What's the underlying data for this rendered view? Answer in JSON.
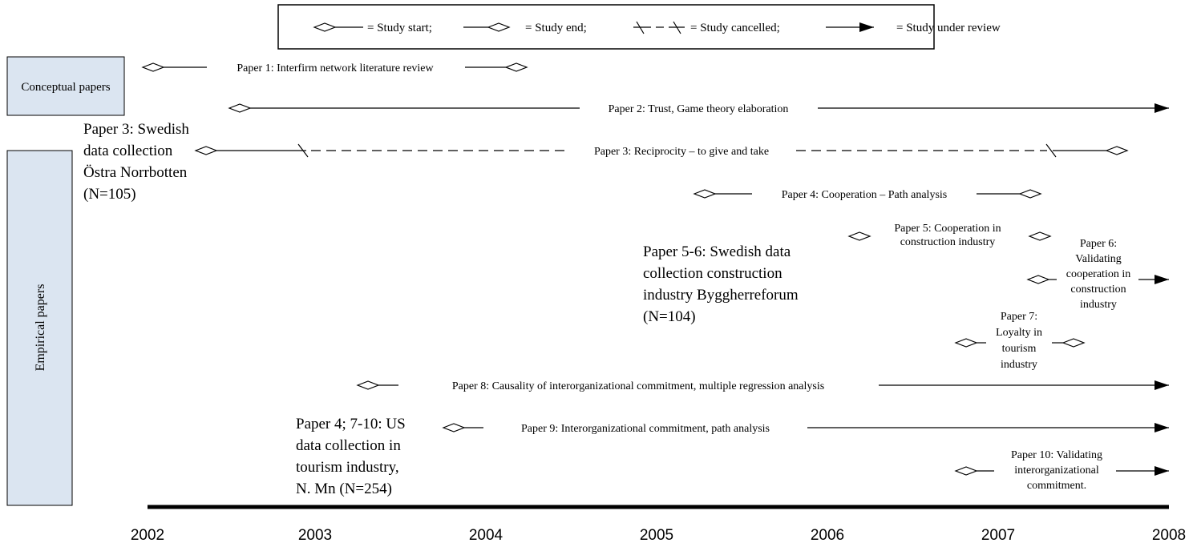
{
  "legend": {
    "start": "= Study start;",
    "end": "= Study end;",
    "cancelled": "= Study cancelled;",
    "review": "= Study under review"
  },
  "categories": {
    "conceptual": "Conceptual papers",
    "empirical": "Empirical papers"
  },
  "collections": {
    "c1": [
      "Paper 3: Swedish",
      "data collection",
      "Östra Norrbotten",
      "(N=105)"
    ],
    "c2": [
      "Paper 5-6: Swedish data",
      "collection construction",
      "industry Byggherreforum",
      "(N=104)"
    ],
    "c3": [
      "Paper 4; 7-10: US",
      "data collection in",
      "tourism industry,",
      "N. Mn (N=254)"
    ]
  },
  "papers": {
    "p1": [
      "Paper 1: Interfirm network literature review"
    ],
    "p2": [
      "Paper 2: Trust, Game theory elaboration"
    ],
    "p3": [
      "Paper 3: Reciprocity – to give and take"
    ],
    "p4": [
      "Paper 4: Cooperation – Path analysis"
    ],
    "p5": [
      "Paper 5: Cooperation in",
      "construction industry"
    ],
    "p6": [
      "Paper 6:",
      "Validating",
      "cooperation in",
      "construction",
      "industry"
    ],
    "p7": [
      "Paper 7:",
      "Loyalty in",
      "tourism",
      "industry"
    ],
    "p8": [
      "Paper 8: Causality of interorganizational commitment, multiple regression analysis"
    ],
    "p9": [
      "Paper 9: Interorganizational commitment, path analysis"
    ],
    "p10": [
      "Paper 10: Validating",
      "interorganizational",
      "commitment."
    ]
  },
  "axis": {
    "years": [
      "2002",
      "2003",
      "2004",
      "2005",
      "2006",
      "2007",
      "2008"
    ]
  }
}
